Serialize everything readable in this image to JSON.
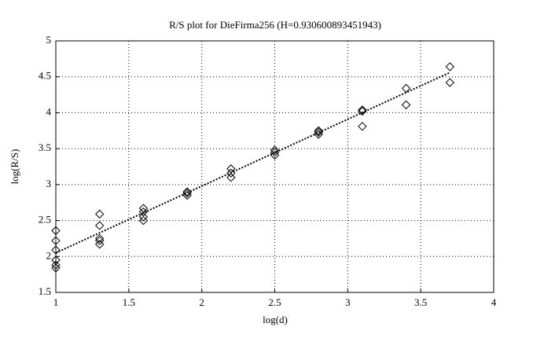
{
  "chart_data": {
    "type": "scatter",
    "title": "R/S plot for DieFirma256 (H=0.930600893451943)",
    "x_label": "log(d)",
    "y_label": "log(R/S)",
    "xlim": [
      1,
      4
    ],
    "xticks": [
      1,
      1.5,
      2,
      2.5,
      3,
      3.5,
      4
    ],
    "ylim": [
      1.5,
      5
    ],
    "yticks": [
      1.5,
      2,
      2.5,
      3,
      3.5,
      4,
      4.5,
      5
    ],
    "grid": true,
    "series": [
      {
        "marker": "diamond",
        "color": "#000000",
        "x": [
          1,
          1,
          1,
          1,
          1,
          1,
          1.3,
          1.3,
          1.3,
          1.3,
          1.3,
          1.6,
          1.6,
          1.6,
          1.6,
          1.9,
          1.9,
          1.9,
          2.2,
          2.2,
          2.2,
          2.5,
          2.5,
          2.5,
          2.8,
          2.8,
          2.8,
          3.1,
          3.1,
          3.1,
          3.4,
          3.4,
          3.7,
          3.7
        ],
        "values": [
          2.36,
          2.22,
          2.09,
          1.95,
          1.88,
          1.84,
          2.59,
          2.43,
          2.25,
          2.22,
          2.17,
          2.67,
          2.62,
          2.55,
          2.5,
          2.9,
          2.88,
          2.85,
          3.22,
          3.16,
          3.1,
          3.48,
          3.45,
          3.41,
          3.75,
          3.73,
          3.7,
          4.04,
          4.02,
          3.81,
          4.34,
          4.11,
          4.64,
          4.42
        ]
      },
      {
        "line": "dotted",
        "color": "#000000",
        "x": [
          1,
          3.7
        ],
        "values": [
          2.05,
          4.56
        ]
      }
    ]
  }
}
